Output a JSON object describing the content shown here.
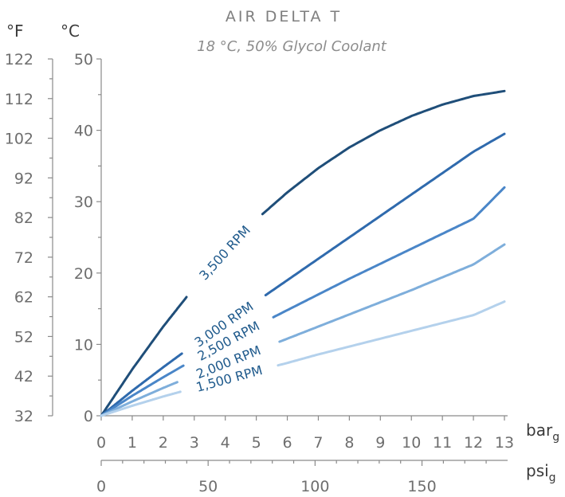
{
  "chart_data": {
    "type": "line",
    "title": "AIR DELTA T",
    "subtitle": "18 °C, 50% Glycol Coolant",
    "y_units": {
      "left": "°F",
      "right": "°C"
    },
    "x_units": {
      "top": "bar",
      "top_sub": "g",
      "bottom": "psi",
      "bottom_sub": "g"
    },
    "ylim_c": [
      0,
      50
    ],
    "ylim_f": [
      32,
      122
    ],
    "xlim_bar": [
      0,
      13
    ],
    "y_ticks_c": [
      "0",
      "10",
      "20",
      "30",
      "40",
      "50"
    ],
    "y_ticks_f": [
      "32",
      "42",
      "52",
      "62",
      "72",
      "82",
      "92",
      "102",
      "112",
      "122"
    ],
    "x_ticks_bar": [
      "0",
      "1",
      "2",
      "3",
      "4",
      "5",
      "6",
      "7",
      "8",
      "9",
      "10",
      "11",
      "12",
      "13"
    ],
    "x_ticks_psi": [
      "0",
      "50",
      "100",
      "150"
    ],
    "x_ticks_psi_values": [
      0,
      50,
      100,
      150
    ],
    "bar_per_psi": 0.0689476,
    "series": [
      {
        "name": "3,500 RPM",
        "color": "#1f4e79",
        "x": [
          0,
          1,
          2,
          3,
          4,
          5,
          6,
          7,
          8,
          9,
          10,
          11,
          12,
          13
        ],
        "y": [
          0,
          6.5,
          12.5,
          18,
          23,
          27.5,
          31.3,
          34.7,
          37.6,
          40,
          42,
          43.6,
          44.8,
          45.5
        ]
      },
      {
        "name": "3,000 RPM",
        "color": "#2f6aad",
        "x": [
          0,
          1,
          2,
          3,
          4,
          5,
          6,
          7,
          8,
          9,
          10,
          11,
          12,
          13
        ],
        "y": [
          0,
          3.5,
          6.8,
          10,
          13,
          16,
          19,
          22,
          25,
          28,
          31,
          34,
          37,
          39.5
        ]
      },
      {
        "name": "2,500 RPM",
        "color": "#4a86c8",
        "x": [
          0,
          1,
          2,
          3,
          4,
          5,
          6,
          7,
          8,
          9,
          10,
          11,
          12,
          13
        ],
        "y": [
          0,
          2.8,
          5.4,
          7.9,
          10.3,
          12.6,
          14.8,
          17,
          19.2,
          21.3,
          23.4,
          25.5,
          27.6,
          32
        ]
      },
      {
        "name": "2,000 RPM",
        "color": "#7eaedb",
        "x": [
          0,
          1,
          2,
          3,
          4,
          5,
          6,
          7,
          8,
          9,
          10,
          11,
          12,
          13
        ],
        "y": [
          0,
          2,
          3.9,
          5.7,
          7.4,
          9.1,
          10.8,
          12.5,
          14.2,
          15.9,
          17.6,
          19.4,
          21.2,
          24
        ]
      },
      {
        "name": "1,500 RPM",
        "color": "#b4d1ec",
        "x": [
          0,
          1,
          2,
          3,
          4,
          5,
          6,
          7,
          8,
          9,
          10,
          11,
          12,
          13
        ],
        "y": [
          0,
          1.4,
          2.7,
          3.9,
          5.1,
          6.3,
          7.4,
          8.6,
          9.7,
          10.8,
          11.9,
          13,
          14.1,
          16
        ]
      }
    ]
  }
}
